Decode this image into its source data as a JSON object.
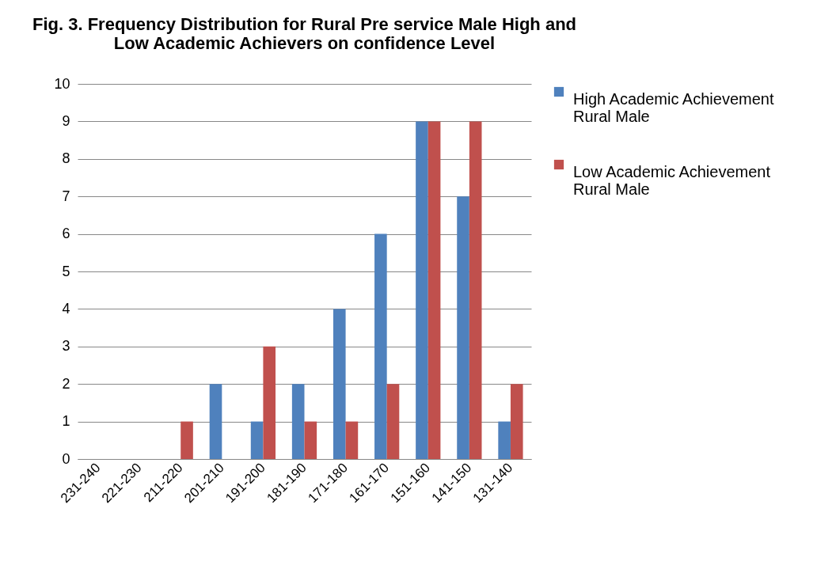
{
  "chart_data": {
    "type": "bar",
    "title": [
      "Fig. 3. Frequency Distribution for Rural Pre service Male High and",
      "Low  Academic Achievers on confidence Level"
    ],
    "categories": [
      "231-240",
      "221-230",
      "211-220",
      "201-210",
      "191-200",
      "181-190",
      "171-180",
      "161-170",
      "151-160",
      "141-150",
      "131-140"
    ],
    "series": [
      {
        "name": "High Academic Achievement Rural Male",
        "color": "#4f81bd",
        "values": [
          0,
          0,
          0,
          2,
          1,
          2,
          4,
          6,
          9,
          7,
          1
        ]
      },
      {
        "name": "Low Academic Achievement Rural Male",
        "color": "#c0504d",
        "values": [
          0,
          0,
          1,
          0,
          3,
          1,
          1,
          2,
          9,
          9,
          2
        ]
      }
    ],
    "ylim": [
      0,
      10
    ],
    "yticks": [
      0,
      1,
      2,
      3,
      4,
      5,
      6,
      7,
      8,
      9,
      10
    ],
    "grid": "y",
    "legend": "right"
  }
}
